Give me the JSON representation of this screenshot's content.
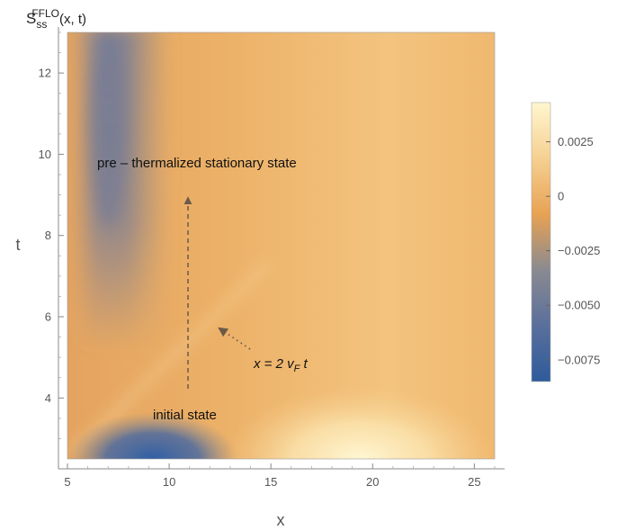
{
  "chart_data": {
    "type": "heatmap",
    "title": "S_ss^FFLO(x, t)",
    "title_parts": {
      "base": "S",
      "sub": "ss",
      "sup": "FFLO",
      "args": "(x, t)"
    },
    "xlabel": "x",
    "ylabel": "t",
    "xlim": [
      5,
      26
    ],
    "ylim": [
      2.5,
      13
    ],
    "xticks": [
      5,
      10,
      15,
      20,
      25
    ],
    "yticks": [
      4,
      6,
      8,
      10,
      12
    ],
    "colorbar": {
      "range": [
        -0.0085,
        0.0043
      ],
      "ticks": [
        0.0025,
        0,
        -0.0025,
        -0.005,
        -0.0075
      ],
      "tick_labels": [
        "0.0025",
        "0",
        "−0.0025",
        "−0.0050",
        "−0.0075"
      ],
      "colors": [
        "#2d5b9b",
        "#6a7898",
        "#8a8a90",
        "#e7a253",
        "#f6d092",
        "#fff6cf"
      ]
    },
    "features": [
      {
        "description": "negative band along left",
        "x_range": [
          6,
          11
        ],
        "t_range": [
          5,
          13
        ],
        "value": -0.005
      },
      {
        "description": "strong negative blob at bottom",
        "x": 9.5,
        "t": 2.5,
        "value": -0.0082
      },
      {
        "description": "positive blob at bottom",
        "x": 20,
        "t": 2.5,
        "value": 0.0042
      },
      {
        "description": "light-cone ridge",
        "line": "x = 2 v_F t"
      }
    ],
    "annotations": [
      {
        "text": "pre – thermalized stationary state",
        "x": 6.1,
        "t": 9.8
      },
      {
        "text": "initial state",
        "x": 8.7,
        "t": 3.65
      },
      {
        "text": "x = 2 v_F t",
        "x": 14.3,
        "t": 4.9,
        "italic": true
      }
    ],
    "arrows": [
      {
        "style": "dashed",
        "from": [
          11.0,
          4.4
        ],
        "to": [
          11.0,
          9.2
        ]
      },
      {
        "style": "dotted",
        "from": [
          14.0,
          5.3
        ],
        "to": [
          12.5,
          5.85
        ]
      }
    ]
  }
}
